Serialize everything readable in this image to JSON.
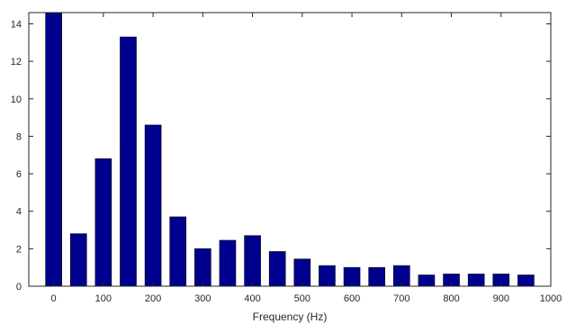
{
  "chart_data": {
    "type": "bar",
    "xlabel": "Frequency (Hz)",
    "ylabel": "",
    "bar_width": 18,
    "x": [
      0,
      50,
      100,
      150,
      200,
      250,
      300,
      350,
      400,
      450,
      500,
      550,
      600,
      650,
      700,
      750,
      800,
      850,
      900,
      950
    ],
    "values": [
      14.6,
      2.8,
      6.8,
      13.3,
      8.6,
      3.7,
      2.0,
      2.45,
      2.7,
      1.85,
      1.45,
      1.1,
      1.0,
      1.0,
      1.1,
      0.6,
      0.65,
      0.65,
      0.65,
      0.6
    ],
    "xlim": [
      -50,
      1000
    ],
    "ylim": [
      0,
      14.6
    ],
    "xticks": [
      0,
      100,
      200,
      300,
      400,
      500,
      600,
      700,
      800,
      900,
      1000
    ],
    "yticks": [
      0,
      2,
      4,
      6,
      8,
      10,
      12,
      14
    ],
    "grid": false,
    "colors": {
      "bar": "#00008F",
      "axis": "#262626"
    }
  }
}
